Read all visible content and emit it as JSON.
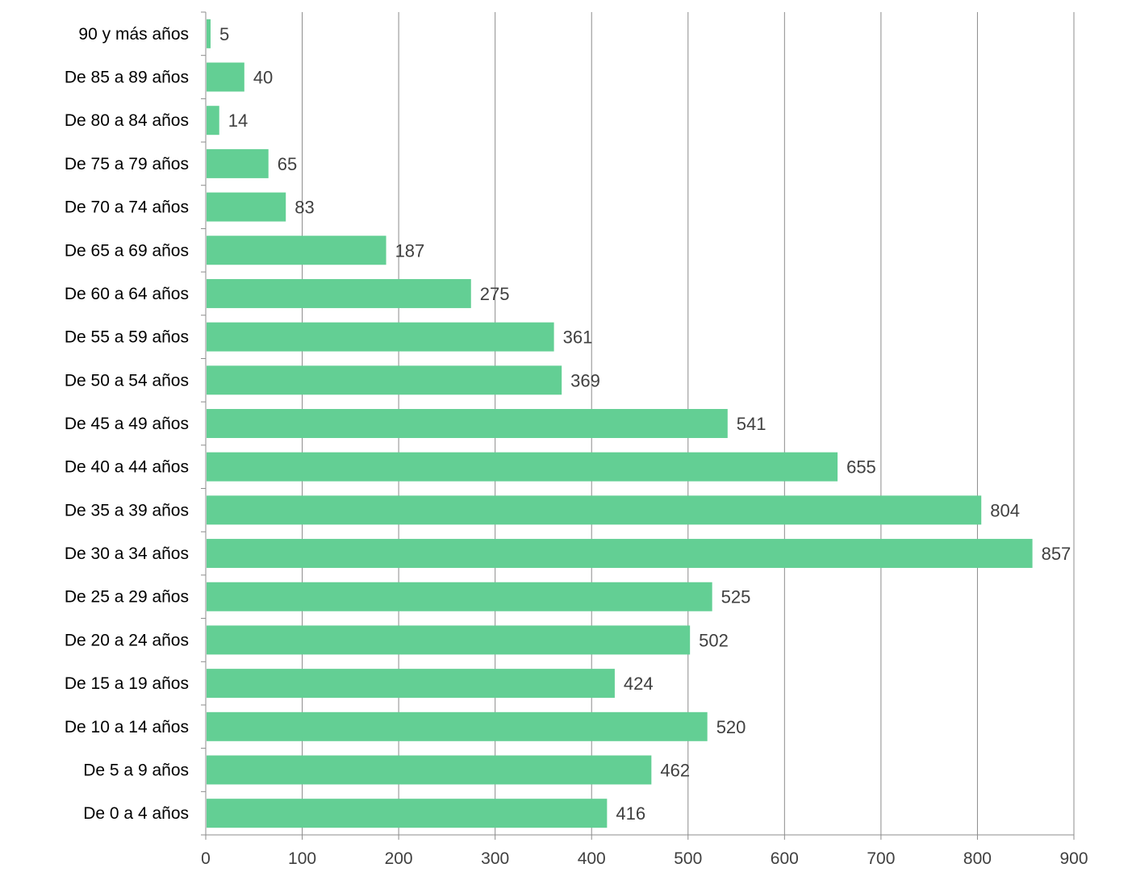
{
  "chart_data": {
    "type": "bar",
    "orientation": "horizontal",
    "title": "",
    "xlabel": "",
    "ylabel": "",
    "xlim": [
      0,
      900
    ],
    "x_ticks": [
      0,
      100,
      200,
      300,
      400,
      500,
      600,
      700,
      800,
      900
    ],
    "grid": true,
    "legend": "none",
    "bar_color": "#63CF94",
    "categories": [
      "90 y más años",
      "De 85 a 89 años",
      "De 80 a 84 años",
      "De 75 a 79 años",
      "De 70 a 74 años",
      "De 65 a 69 años",
      "De 60 a 64 años",
      "De 55 a 59 años",
      "De 50 a 54 años",
      "De 45 a 49 años",
      "De 40 a 44 años",
      "De 35 a 39 años",
      "De 30 a 34 años",
      "De 25 a 29 años",
      "De 20 a 24 años",
      "De 15 a 19 años",
      "De 10 a 14 años",
      "De 5 a 9 años",
      "De 0 a 4 años"
    ],
    "values": [
      5,
      40,
      14,
      65,
      83,
      187,
      275,
      361,
      369,
      541,
      655,
      804,
      857,
      525,
      502,
      424,
      520,
      462,
      416
    ]
  }
}
